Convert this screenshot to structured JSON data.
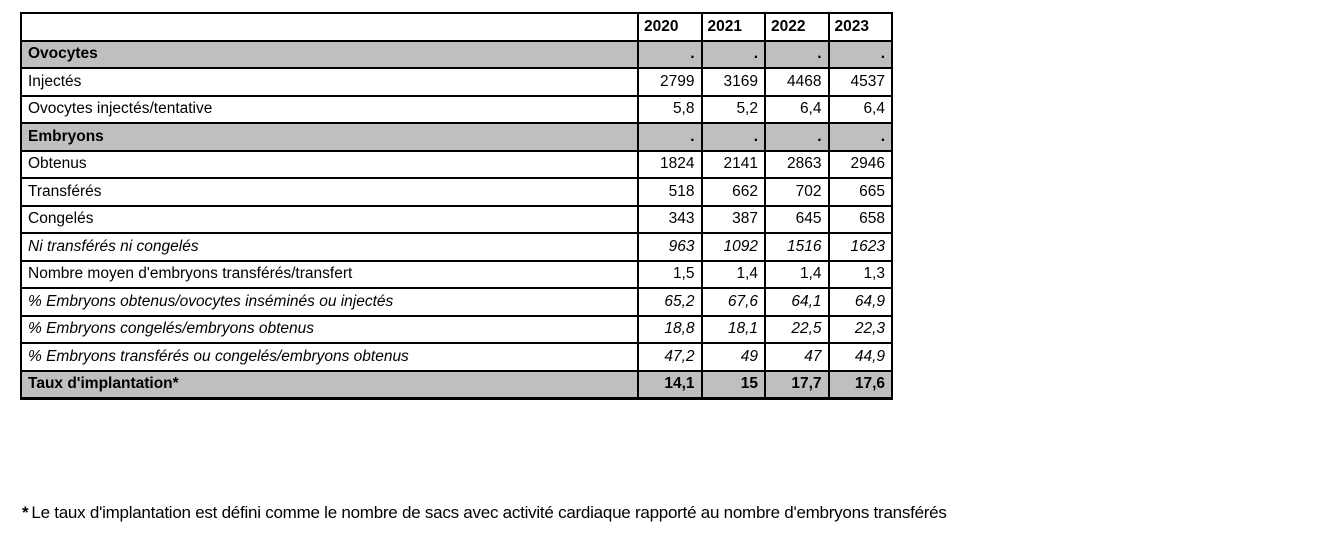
{
  "table": {
    "year_headers": [
      "2020",
      "2021",
      "2022",
      "2023"
    ],
    "rows": [
      {
        "label": "Ovocytes",
        "values": [
          ".",
          ".",
          ".",
          "."
        ],
        "style": "section"
      },
      {
        "label": "Injectés",
        "values": [
          "2799",
          "3169",
          "4468",
          "4537"
        ],
        "style": "normal"
      },
      {
        "label": "Ovocytes injectés/tentative",
        "values": [
          "5,8",
          "5,2",
          "6,4",
          "6,4"
        ],
        "style": "normal"
      },
      {
        "label": "Embryons",
        "values": [
          ".",
          ".",
          ".",
          "."
        ],
        "style": "section"
      },
      {
        "label": "Obtenus",
        "values": [
          "1824",
          "2141",
          "2863",
          "2946"
        ],
        "style": "normal"
      },
      {
        "label": "Transférés",
        "values": [
          "518",
          "662",
          "702",
          "665"
        ],
        "style": "normal"
      },
      {
        "label": "Congelés",
        "values": [
          "343",
          "387",
          "645",
          "658"
        ],
        "style": "normal"
      },
      {
        "label": "Ni transférés ni congelés",
        "values": [
          "963",
          "1092",
          "1516",
          "1623"
        ],
        "style": "italic"
      },
      {
        "label": "Nombre moyen d'embryons transférés/transfert",
        "values": [
          "1,5",
          "1,4",
          "1,4",
          "1,3"
        ],
        "style": "normal"
      },
      {
        "label": "% Embryons obtenus/ovocytes inséminés ou injectés",
        "values": [
          "65,2",
          "67,6",
          "64,1",
          "64,9"
        ],
        "style": "italic"
      },
      {
        "label": "% Embryons congelés/embryons obtenus",
        "values": [
          "18,8",
          "18,1",
          "22,5",
          "22,3"
        ],
        "style": "italic"
      },
      {
        "label": "% Embryons transférés ou congelés/embryons obtenus",
        "values": [
          "47,2",
          "49",
          "47",
          "44,9"
        ],
        "style": "italic"
      },
      {
        "label": "Taux d'implantation*",
        "values": [
          "14,1",
          "15",
          "17,7",
          "17,6"
        ],
        "style": "total"
      }
    ]
  },
  "footnote": {
    "marker": "*",
    "text": "Le taux d'implantation est défini comme le nombre de sacs avec activité cardiaque rapporté au nombre d'embryons transférés"
  },
  "colors": {
    "section_row_bg": "#bfbfbf",
    "border": "#000000",
    "background": "#ffffff"
  },
  "chart_data": {
    "type": "table",
    "title": "",
    "categories": [
      "2020",
      "2021",
      "2022",
      "2023"
    ],
    "series": [
      {
        "name": "Ovocytes injectés",
        "values": [
          2799,
          3169,
          4468,
          4537
        ]
      },
      {
        "name": "Ovocytes injectés/tentative",
        "values": [
          5.8,
          5.2,
          6.4,
          6.4
        ]
      },
      {
        "name": "Embryons obtenus",
        "values": [
          1824,
          2141,
          2863,
          2946
        ]
      },
      {
        "name": "Embryons transférés",
        "values": [
          518,
          662,
          702,
          665
        ]
      },
      {
        "name": "Embryons congelés",
        "values": [
          343,
          387,
          645,
          658
        ]
      },
      {
        "name": "Ni transférés ni congelés",
        "values": [
          963,
          1092,
          1516,
          1623
        ]
      },
      {
        "name": "Nombre moyen d'embryons transférés/transfert",
        "values": [
          1.5,
          1.4,
          1.4,
          1.3
        ]
      },
      {
        "name": "% Embryons obtenus/ovocytes inséminés ou injectés",
        "values": [
          65.2,
          67.6,
          64.1,
          64.9
        ]
      },
      {
        "name": "% Embryons congelés/embryons obtenus",
        "values": [
          18.8,
          18.1,
          22.5,
          22.3
        ]
      },
      {
        "name": "% Embryons transférés ou congelés/embryons obtenus",
        "values": [
          47.2,
          49,
          47,
          44.9
        ]
      },
      {
        "name": "Taux d'implantation",
        "values": [
          14.1,
          15,
          17.7,
          17.6
        ]
      }
    ]
  }
}
